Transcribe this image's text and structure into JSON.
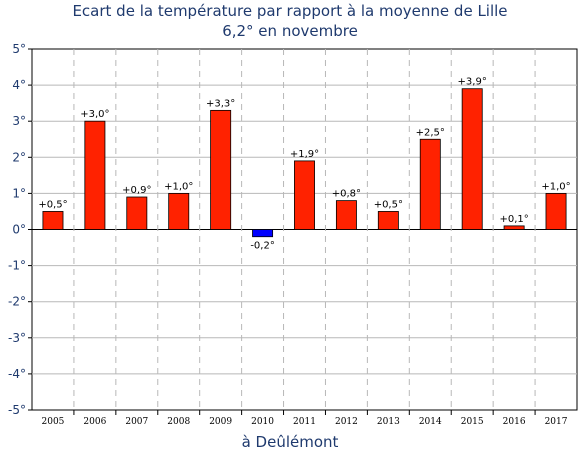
{
  "chart_data": {
    "type": "bar",
    "title": "Ecart de la température par rapport à la moyenne de Lille",
    "subtitle": "6,2° en novembre",
    "xlabel": "à Deûlémont",
    "ylabel": "",
    "categories": [
      "2005",
      "2006",
      "2007",
      "2008",
      "2009",
      "2010",
      "2011",
      "2012",
      "2013",
      "2014",
      "2015",
      "2016",
      "2017"
    ],
    "values": [
      0.5,
      3.0,
      0.9,
      1.0,
      3.3,
      -0.2,
      1.9,
      0.8,
      0.5,
      2.5,
      3.9,
      0.1,
      1.0
    ],
    "data_labels": [
      "+0,5°",
      "+3,0°",
      "+0,9°",
      "+1,0°",
      "+3,3°",
      "-0,2°",
      "+1,9°",
      "+0,8°",
      "+0,5°",
      "+2,5°",
      "+3,9°",
      "+0,1°",
      "+1,0°"
    ],
    "ylim": [
      -5,
      5
    ],
    "yticks": [
      "5°",
      "4°",
      "3°",
      "2°",
      "1°",
      "0°",
      "-1°",
      "-2°",
      "-3°",
      "-4°",
      "-5°"
    ],
    "grid": true,
    "colors": {
      "positive": "#ff2200",
      "negative": "#0000ff",
      "axis_text": "#1f3a6e"
    }
  }
}
